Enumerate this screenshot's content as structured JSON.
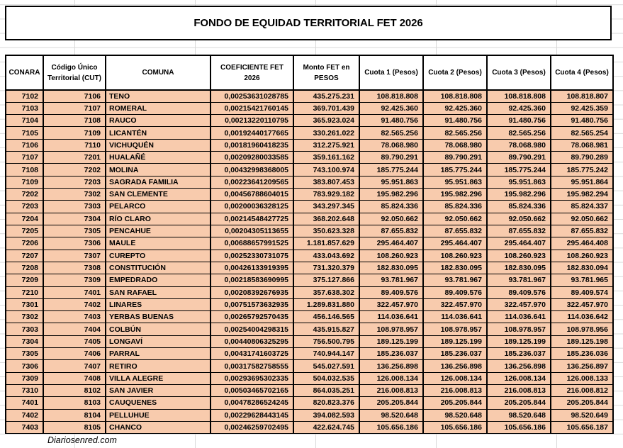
{
  "title": "FONDO DE EQUIDAD TERRITORIAL FET 2026",
  "footer": "Diariosenred.com",
  "colors": {
    "row_fill": "#F8CBAD",
    "table_border": "#000000",
    "gridline": "#D9D9D9",
    "background": "#FFFFFF"
  },
  "table": {
    "columns": [
      "CONARA",
      "Código Único Territorial (CUT)",
      "COMUNA",
      "COEFICIENTE FET 2026",
      "Monto FET en PESOS",
      "Cuota 1 (Pesos)",
      "Cuota 2 (Pesos)",
      "Cuota 3 (Pesos)",
      "Cuota 4 (Pesos)"
    ],
    "rows": [
      [
        "7102",
        "7106",
        "TENO",
        "0,00253631028785",
        "435.275.231",
        "108.818.808",
        "108.818.808",
        "108.818.808",
        "108.818.807"
      ],
      [
        "7103",
        "7107",
        "ROMERAL",
        "0,00215421760145",
        "369.701.439",
        "92.425.360",
        "92.425.360",
        "92.425.360",
        "92.425.359"
      ],
      [
        "7104",
        "7108",
        "RAUCO",
        "0,00213220110795",
        "365.923.024",
        "91.480.756",
        "91.480.756",
        "91.480.756",
        "91.480.756"
      ],
      [
        "7105",
        "7109",
        "LICANTÉN",
        "0,00192440177665",
        "330.261.022",
        "82.565.256",
        "82.565.256",
        "82.565.256",
        "82.565.254"
      ],
      [
        "7106",
        "7110",
        "VICHUQUÉN",
        "0,00181960418235",
        "312.275.921",
        "78.068.980",
        "78.068.980",
        "78.068.980",
        "78.068.981"
      ],
      [
        "7107",
        "7201",
        "HUALAÑÉ",
        "0,00209280033585",
        "359.161.162",
        "89.790.291",
        "89.790.291",
        "89.790.291",
        "89.790.289"
      ],
      [
        "7108",
        "7202",
        "MOLINA",
        "0,00432998368005",
        "743.100.974",
        "185.775.244",
        "185.775.244",
        "185.775.244",
        "185.775.242"
      ],
      [
        "7109",
        "7203",
        "SAGRADA FAMILIA",
        "0,00223641209565",
        "383.807.453",
        "95.951.863",
        "95.951.863",
        "95.951.863",
        "95.951.864"
      ],
      [
        "7202",
        "7302",
        "SAN CLEMENTE",
        "0,00456788604015",
        "783.929.182",
        "195.982.296",
        "195.982.296",
        "195.982.296",
        "195.982.294"
      ],
      [
        "7203",
        "7303",
        "PELARCO",
        "0,00200036328125",
        "343.297.345",
        "85.824.336",
        "85.824.336",
        "85.824.336",
        "85.824.337"
      ],
      [
        "7204",
        "7304",
        "RÍO CLARO",
        "0,00214548427725",
        "368.202.648",
        "92.050.662",
        "92.050.662",
        "92.050.662",
        "92.050.662"
      ],
      [
        "7205",
        "7305",
        "PENCAHUE",
        "0,00204305113655",
        "350.623.328",
        "87.655.832",
        "87.655.832",
        "87.655.832",
        "87.655.832"
      ],
      [
        "7206",
        "7306",
        "MAULE",
        "0,00688657991525",
        "1.181.857.629",
        "295.464.407",
        "295.464.407",
        "295.464.407",
        "295.464.408"
      ],
      [
        "7207",
        "7307",
        "CUREPTO",
        "0,00252330731075",
        "433.043.692",
        "108.260.923",
        "108.260.923",
        "108.260.923",
        "108.260.923"
      ],
      [
        "7208",
        "7308",
        "CONSTITUCIÓN",
        "0,00426133919395",
        "731.320.379",
        "182.830.095",
        "182.830.095",
        "182.830.095",
        "182.830.094"
      ],
      [
        "7209",
        "7309",
        "EMPEDRADO",
        "0,00218583690995",
        "375.127.866",
        "93.781.967",
        "93.781.967",
        "93.781.967",
        "93.781.965"
      ],
      [
        "7210",
        "7401",
        "SAN RAFAEL",
        "0,00208392676935",
        "357.638.302",
        "89.409.576",
        "89.409.576",
        "89.409.576",
        "89.409.574"
      ],
      [
        "7301",
        "7402",
        "LINARES",
        "0,00751573632935",
        "1.289.831.880",
        "322.457.970",
        "322.457.970",
        "322.457.970",
        "322.457.970"
      ],
      [
        "7302",
        "7403",
        "YERBAS BUENAS",
        "0,00265792570435",
        "456.146.565",
        "114.036.641",
        "114.036.641",
        "114.036.641",
        "114.036.642"
      ],
      [
        "7303",
        "7404",
        "COLBÚN",
        "0,00254004298315",
        "435.915.827",
        "108.978.957",
        "108.978.957",
        "108.978.957",
        "108.978.956"
      ],
      [
        "7304",
        "7405",
        "LONGAVÍ",
        "0,00440806325295",
        "756.500.795",
        "189.125.199",
        "189.125.199",
        "189.125.199",
        "189.125.198"
      ],
      [
        "7305",
        "7406",
        "PARRAL",
        "0,00431741603725",
        "740.944.147",
        "185.236.037",
        "185.236.037",
        "185.236.037",
        "185.236.036"
      ],
      [
        "7306",
        "7407",
        "RETIRO",
        "0,00317582758555",
        "545.027.591",
        "136.256.898",
        "136.256.898",
        "136.256.898",
        "136.256.897"
      ],
      [
        "7309",
        "7408",
        "VILLA ALEGRE",
        "0,00293695302335",
        "504.032.535",
        "126.008.134",
        "126.008.134",
        "126.008.134",
        "126.008.133"
      ],
      [
        "7310",
        "8102",
        "SAN JAVIER",
        "0,00503465702165",
        "864.035.251",
        "216.008.813",
        "216.008.813",
        "216.008.813",
        "216.008.812"
      ],
      [
        "7401",
        "8103",
        "CAUQUENES",
        "0,00478286524245",
        "820.823.376",
        "205.205.844",
        "205.205.844",
        "205.205.844",
        "205.205.844"
      ],
      [
        "7402",
        "8104",
        "PELLUHUE",
        "0,00229628443145",
        "394.082.593",
        "98.520.648",
        "98.520.648",
        "98.520.648",
        "98.520.649"
      ],
      [
        "7403",
        "8105",
        "CHANCO",
        "0,00246259702495",
        "422.624.745",
        "105.656.186",
        "105.656.186",
        "105.656.186",
        "105.656.187"
      ]
    ]
  }
}
